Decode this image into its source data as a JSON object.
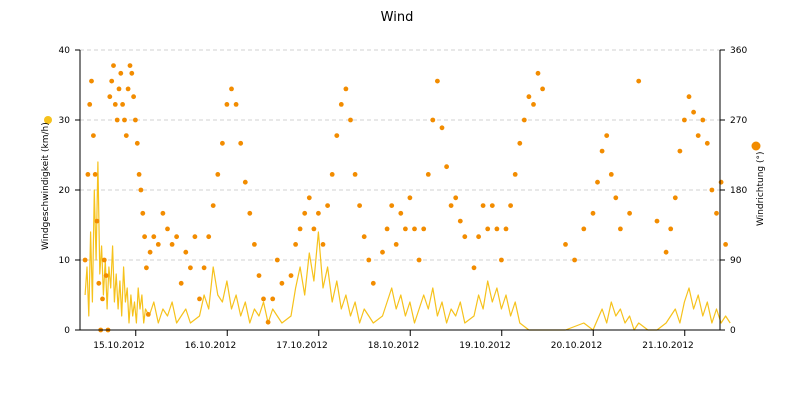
{
  "chart_data": {
    "type": "line",
    "title": "Wind",
    "x_tick_labels": [
      "15.10.2012",
      "16.10.2012",
      "17.10.2012",
      "18.10.2012",
      "19.10.2012",
      "20.10.2012",
      "21.10.2012"
    ],
    "y_left": {
      "label": "Windgeschwindigkeit (km/h)",
      "ylim": [
        0,
        40
      ],
      "ticks": [
        0,
        10,
        20,
        30,
        40
      ]
    },
    "y_right": {
      "label": "Windrichtung (°)",
      "ylim": [
        0,
        360
      ],
      "ticks": [
        0,
        90,
        180,
        270,
        360
      ]
    },
    "grid": true,
    "colors": {
      "speed": "#f6c21c",
      "direction": "#f28c00",
      "grid": "#d0d0d0"
    },
    "series": [
      {
        "type": "line",
        "axis": "left",
        "x_unit": "day offset from 15.10.2012",
        "points": [
          [
            -0.25,
            5
          ],
          [
            -0.23,
            9
          ],
          [
            -0.21,
            2
          ],
          [
            -0.19,
            14
          ],
          [
            -0.17,
            4
          ],
          [
            -0.15,
            20
          ],
          [
            -0.13,
            10
          ],
          [
            -0.11,
            24
          ],
          [
            -0.09,
            8
          ],
          [
            -0.07,
            12
          ],
          [
            -0.05,
            5
          ],
          [
            -0.03,
            10
          ],
          [
            -0.01,
            3
          ],
          [
            0.01,
            9
          ],
          [
            0.03,
            6
          ],
          [
            0.05,
            12
          ],
          [
            0.07,
            4
          ],
          [
            0.09,
            8
          ],
          [
            0.11,
            3
          ],
          [
            0.13,
            7
          ],
          [
            0.15,
            2
          ],
          [
            0.17,
            9
          ],
          [
            0.19,
            4
          ],
          [
            0.21,
            6
          ],
          [
            0.23,
            1
          ],
          [
            0.25,
            5
          ],
          [
            0.27,
            2
          ],
          [
            0.29,
            4
          ],
          [
            0.31,
            1
          ],
          [
            0.33,
            6
          ],
          [
            0.35,
            3
          ],
          [
            0.37,
            5
          ],
          [
            0.39,
            1
          ],
          [
            0.41,
            3
          ],
          [
            0.45,
            2
          ],
          [
            0.5,
            4
          ],
          [
            0.55,
            1
          ],
          [
            0.6,
            3
          ],
          [
            0.65,
            2
          ],
          [
            0.7,
            4
          ],
          [
            0.75,
            1
          ],
          [
            0.8,
            2
          ],
          [
            0.85,
            3
          ],
          [
            0.9,
            1
          ],
          [
            1.0,
            2
          ],
          [
            1.05,
            5
          ],
          [
            1.1,
            3
          ],
          [
            1.15,
            9
          ],
          [
            1.2,
            5
          ],
          [
            1.25,
            4
          ],
          [
            1.3,
            7
          ],
          [
            1.35,
            3
          ],
          [
            1.4,
            5
          ],
          [
            1.45,
            2
          ],
          [
            1.5,
            4
          ],
          [
            1.55,
            1
          ],
          [
            1.6,
            3
          ],
          [
            1.65,
            2
          ],
          [
            1.7,
            4
          ],
          [
            1.75,
            1
          ],
          [
            1.8,
            3
          ],
          [
            1.85,
            2
          ],
          [
            1.9,
            1
          ],
          [
            2.0,
            2
          ],
          [
            2.05,
            6
          ],
          [
            2.1,
            9
          ],
          [
            2.15,
            5
          ],
          [
            2.2,
            11
          ],
          [
            2.25,
            7
          ],
          [
            2.3,
            14
          ],
          [
            2.35,
            6
          ],
          [
            2.4,
            9
          ],
          [
            2.45,
            4
          ],
          [
            2.5,
            7
          ],
          [
            2.55,
            3
          ],
          [
            2.6,
            5
          ],
          [
            2.65,
            2
          ],
          [
            2.7,
            4
          ],
          [
            2.75,
            1
          ],
          [
            2.8,
            3
          ],
          [
            2.85,
            2
          ],
          [
            2.9,
            1
          ],
          [
            3.0,
            2
          ],
          [
            3.05,
            4
          ],
          [
            3.1,
            6
          ],
          [
            3.15,
            3
          ],
          [
            3.2,
            5
          ],
          [
            3.25,
            2
          ],
          [
            3.3,
            4
          ],
          [
            3.35,
            1
          ],
          [
            3.4,
            3
          ],
          [
            3.45,
            5
          ],
          [
            3.5,
            3
          ],
          [
            3.55,
            6
          ],
          [
            3.6,
            2
          ],
          [
            3.65,
            4
          ],
          [
            3.7,
            1
          ],
          [
            3.75,
            3
          ],
          [
            3.8,
            2
          ],
          [
            3.85,
            4
          ],
          [
            3.9,
            1
          ],
          [
            4.0,
            2
          ],
          [
            4.05,
            5
          ],
          [
            4.1,
            3
          ],
          [
            4.15,
            7
          ],
          [
            4.2,
            4
          ],
          [
            4.25,
            6
          ],
          [
            4.3,
            3
          ],
          [
            4.35,
            5
          ],
          [
            4.4,
            2
          ],
          [
            4.45,
            4
          ],
          [
            4.5,
            1
          ],
          [
            4.6,
            0
          ],
          [
            4.7,
            0
          ],
          [
            4.8,
            0
          ],
          [
            5.0,
            0
          ],
          [
            5.2,
            1
          ],
          [
            5.3,
            0
          ],
          [
            5.4,
            3
          ],
          [
            5.45,
            1
          ],
          [
            5.5,
            4
          ],
          [
            5.55,
            2
          ],
          [
            5.6,
            3
          ],
          [
            5.65,
            1
          ],
          [
            5.7,
            2
          ],
          [
            5.75,
            0
          ],
          [
            5.8,
            1
          ],
          [
            5.9,
            0
          ],
          [
            6.0,
            0
          ],
          [
            6.1,
            1
          ],
          [
            6.2,
            3
          ],
          [
            6.25,
            1
          ],
          [
            6.3,
            4
          ],
          [
            6.35,
            6
          ],
          [
            6.4,
            3
          ],
          [
            6.45,
            5
          ],
          [
            6.5,
            2
          ],
          [
            6.55,
            4
          ],
          [
            6.6,
            1
          ],
          [
            6.65,
            3
          ],
          [
            6.7,
            1
          ],
          [
            6.75,
            2
          ],
          [
            6.8,
            1
          ]
        ]
      },
      {
        "type": "scatter",
        "axis": "right",
        "x_unit": "day offset from 15.10.2012",
        "points": [
          [
            -0.25,
            90
          ],
          [
            -0.22,
            200
          ],
          [
            -0.2,
            290
          ],
          [
            -0.18,
            320
          ],
          [
            -0.16,
            250
          ],
          [
            -0.14,
            200
          ],
          [
            -0.12,
            140
          ],
          [
            -0.1,
            60
          ],
          [
            -0.08,
            0
          ],
          [
            -0.06,
            40
          ],
          [
            -0.04,
            90
          ],
          [
            -0.02,
            70
          ],
          [
            0.0,
            0
          ],
          [
            0.02,
            300
          ],
          [
            0.04,
            320
          ],
          [
            0.06,
            340
          ],
          [
            0.08,
            290
          ],
          [
            0.1,
            270
          ],
          [
            0.12,
            310
          ],
          [
            0.14,
            330
          ],
          [
            0.16,
            290
          ],
          [
            0.18,
            270
          ],
          [
            0.2,
            250
          ],
          [
            0.22,
            310
          ],
          [
            0.24,
            340
          ],
          [
            0.26,
            330
          ],
          [
            0.28,
            300
          ],
          [
            0.3,
            270
          ],
          [
            0.32,
            240
          ],
          [
            0.34,
            200
          ],
          [
            0.36,
            180
          ],
          [
            0.38,
            150
          ],
          [
            0.4,
            120
          ],
          [
            0.42,
            80
          ],
          [
            0.44,
            20
          ],
          [
            0.46,
            100
          ],
          [
            0.5,
            120
          ],
          [
            0.55,
            110
          ],
          [
            0.6,
            150
          ],
          [
            0.65,
            130
          ],
          [
            0.7,
            110
          ],
          [
            0.75,
            120
          ],
          [
            0.8,
            60
          ],
          [
            0.85,
            100
          ],
          [
            0.9,
            80
          ],
          [
            0.95,
            120
          ],
          [
            1.0,
            40
          ],
          [
            1.05,
            80
          ],
          [
            1.1,
            120
          ],
          [
            1.15,
            160
          ],
          [
            1.2,
            200
          ],
          [
            1.25,
            240
          ],
          [
            1.3,
            290
          ],
          [
            1.35,
            310
          ],
          [
            1.4,
            290
          ],
          [
            1.45,
            240
          ],
          [
            1.5,
            190
          ],
          [
            1.55,
            150
          ],
          [
            1.6,
            110
          ],
          [
            1.65,
            70
          ],
          [
            1.7,
            40
          ],
          [
            1.75,
            10
          ],
          [
            1.8,
            40
          ],
          [
            1.85,
            90
          ],
          [
            1.9,
            60
          ],
          [
            2.0,
            70
          ],
          [
            2.05,
            110
          ],
          [
            2.1,
            130
          ],
          [
            2.15,
            150
          ],
          [
            2.2,
            170
          ],
          [
            2.25,
            130
          ],
          [
            2.3,
            150
          ],
          [
            2.35,
            110
          ],
          [
            2.4,
            160
          ],
          [
            2.45,
            200
          ],
          [
            2.5,
            250
          ],
          [
            2.55,
            290
          ],
          [
            2.6,
            310
          ],
          [
            2.65,
            270
          ],
          [
            2.7,
            200
          ],
          [
            2.75,
            160
          ],
          [
            2.8,
            120
          ],
          [
            2.85,
            90
          ],
          [
            2.9,
            60
          ],
          [
            3.0,
            100
          ],
          [
            3.05,
            130
          ],
          [
            3.1,
            160
          ],
          [
            3.15,
            110
          ],
          [
            3.2,
            150
          ],
          [
            3.25,
            130
          ],
          [
            3.3,
            170
          ],
          [
            3.35,
            130
          ],
          [
            3.4,
            90
          ],
          [
            3.45,
            130
          ],
          [
            3.5,
            200
          ],
          [
            3.55,
            270
          ],
          [
            3.6,
            320
          ],
          [
            3.65,
            260
          ],
          [
            3.7,
            210
          ],
          [
            3.75,
            160
          ],
          [
            3.8,
            170
          ],
          [
            3.85,
            140
          ],
          [
            3.9,
            120
          ],
          [
            4.0,
            80
          ],
          [
            4.05,
            120
          ],
          [
            4.1,
            160
          ],
          [
            4.15,
            130
          ],
          [
            4.2,
            160
          ],
          [
            4.25,
            130
          ],
          [
            4.3,
            90
          ],
          [
            4.35,
            130
          ],
          [
            4.4,
            160
          ],
          [
            4.45,
            200
          ],
          [
            4.5,
            240
          ],
          [
            4.55,
            270
          ],
          [
            4.6,
            300
          ],
          [
            4.65,
            290
          ],
          [
            4.7,
            330
          ],
          [
            4.75,
            310
          ],
          [
            5.0,
            110
          ],
          [
            5.1,
            90
          ],
          [
            5.2,
            130
          ],
          [
            5.3,
            150
          ],
          [
            5.35,
            190
          ],
          [
            5.4,
            230
          ],
          [
            5.45,
            250
          ],
          [
            5.5,
            200
          ],
          [
            5.55,
            170
          ],
          [
            5.6,
            130
          ],
          [
            5.7,
            150
          ],
          [
            5.8,
            320
          ],
          [
            6.0,
            140
          ],
          [
            6.1,
            100
          ],
          [
            6.15,
            130
          ],
          [
            6.2,
            170
          ],
          [
            6.25,
            230
          ],
          [
            6.3,
            270
          ],
          [
            6.35,
            300
          ],
          [
            6.4,
            280
          ],
          [
            6.45,
            250
          ],
          [
            6.5,
            270
          ],
          [
            6.55,
            240
          ],
          [
            6.6,
            180
          ],
          [
            6.65,
            150
          ],
          [
            6.7,
            190
          ],
          [
            6.75,
            110
          ]
        ]
      }
    ]
  }
}
